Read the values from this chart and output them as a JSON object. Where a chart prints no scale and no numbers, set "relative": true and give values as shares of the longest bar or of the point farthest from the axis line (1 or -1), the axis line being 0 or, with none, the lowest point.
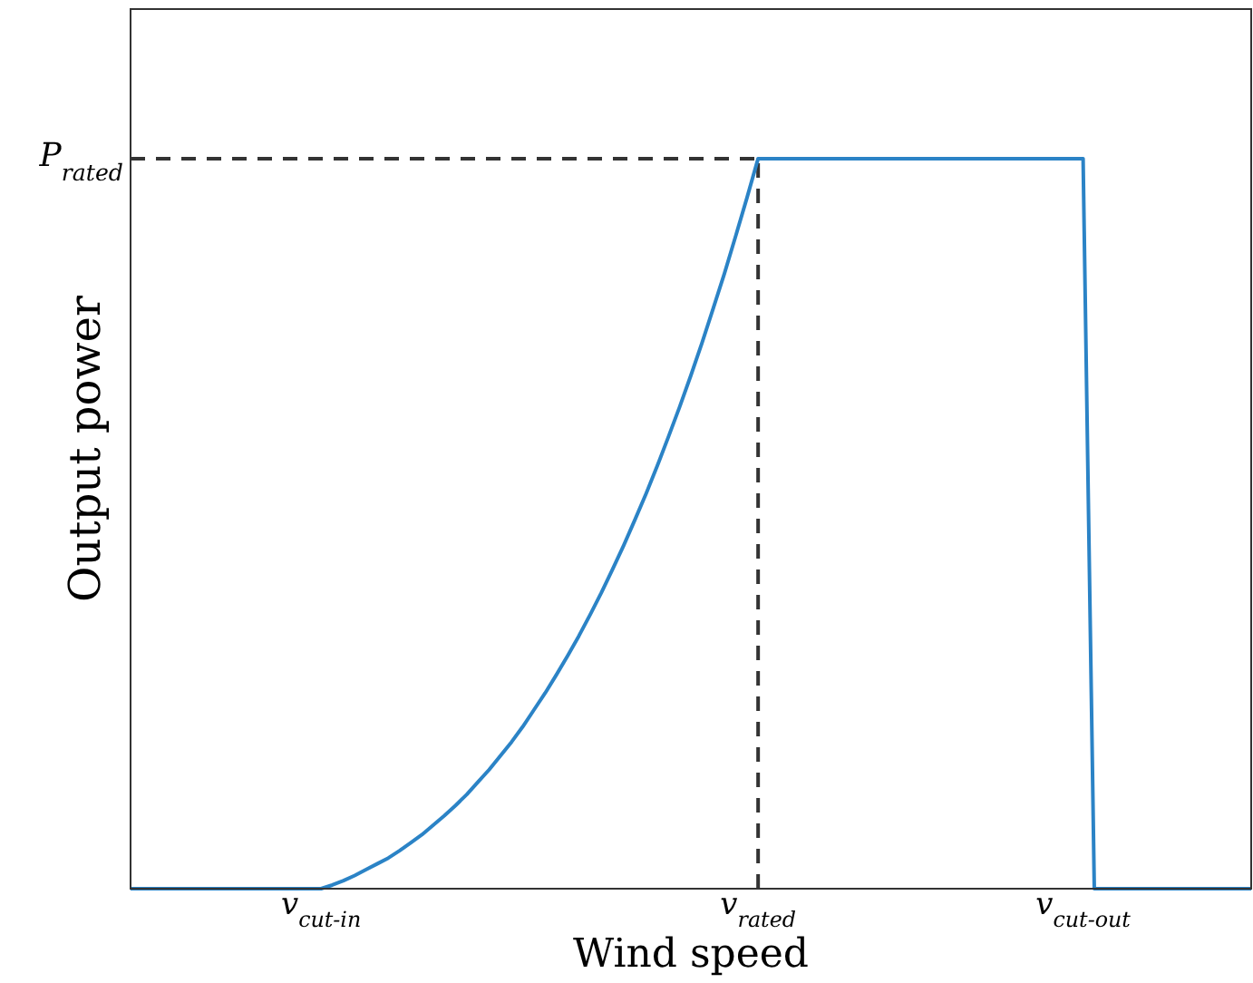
{
  "chart_data": {
    "type": "line",
    "xlabel": "Wind speed",
    "ylabel": "Output power",
    "relative": true,
    "categories": [
      null,
      null,
      null,
      null,
      null,
      null,
      null,
      null,
      null,
      null,
      null,
      null,
      null,
      null,
      null,
      null,
      null,
      "v$_{cut-in}$",
      null,
      null,
      null,
      null,
      null,
      null,
      null,
      null,
      null,
      null,
      null,
      null,
      null,
      null,
      null,
      null,
      null,
      null,
      null,
      null,
      null,
      null,
      null,
      null,
      null,
      null,
      null,
      null,
      null,
      null,
      null,
      null,
      null,
      null,
      null,
      null,
      null,
      null,
      "v$_{rated}$",
      null,
      null,
      null,
      null,
      null,
      null,
      null,
      null,
      null,
      null,
      null,
      null,
      null,
      null,
      null,
      null,
      null,
      null,
      null,
      null,
      null,
      null,
      null,
      null,
      null,
      null,
      null,
      null,
      "v$_{cut-out}$",
      null,
      null,
      null,
      null,
      null,
      null,
      null,
      null,
      null,
      null,
      null,
      null,
      null,
      null,
      null
    ],
    "annotations": [
      "P$_{rated}$"
    ],
    "ref_lines": [
      {
        "axis": "x",
        "value": "v$_{rated}$",
        "line_style": "dashed",
        "color": "#333333"
      }
    ],
    "grid": false,
    "marker": "none",
    "series": [
      {
        "color": "#333333",
        "line_style": "dashed",
        "values": [
          1,
          1,
          1,
          1,
          1,
          1,
          1,
          1,
          1,
          1,
          1,
          1,
          1,
          1,
          1,
          1,
          1,
          1,
          1,
          1,
          1,
          1,
          1,
          1,
          1,
          1,
          1,
          1,
          1,
          1,
          1,
          1,
          1,
          1,
          1,
          1,
          1,
          1,
          1,
          1,
          1,
          1,
          1,
          1,
          1,
          1,
          1,
          1,
          1,
          1,
          1,
          1,
          1,
          1,
          1,
          1,
          1,
          null,
          null,
          null,
          null,
          null,
          null,
          null,
          null,
          null,
          null,
          null,
          null,
          null,
          null,
          null,
          null,
          null,
          null,
          null,
          null,
          null,
          null,
          null,
          null,
          null,
          null,
          null,
          null,
          null,
          null,
          null,
          null,
          null,
          null,
          null,
          null,
          null,
          null,
          null,
          null,
          null,
          null,
          null,
          null
        ]
      },
      {
        "color": "#2b83c6",
        "line_style": "solid",
        "values": [
          0,
          0,
          0,
          0,
          0,
          0,
          0,
          0,
          0,
          0,
          0,
          0,
          0,
          0,
          0,
          0,
          0,
          0,
          0.005,
          0.011,
          0.018,
          0.026,
          0.034,
          0.042,
          0.052,
          0.063,
          0.074,
          0.087,
          0.1,
          0.114,
          0.129,
          0.146,
          0.163,
          0.182,
          0.201,
          0.222,
          0.245,
          0.268,
          0.293,
          0.319,
          0.346,
          0.375,
          0.405,
          0.437,
          0.47,
          0.505,
          0.541,
          0.579,
          0.619,
          0.66,
          0.703,
          0.748,
          0.795,
          0.843,
          0.894,
          0.946,
          1,
          1,
          1,
          1,
          1,
          1,
          1,
          1,
          1,
          1,
          1,
          1,
          1,
          1,
          1,
          1,
          1,
          1,
          1,
          1,
          1,
          1,
          1,
          1,
          1,
          1,
          1,
          1,
          1,
          1,
          0,
          0,
          0,
          0,
          0,
          0,
          0,
          0,
          0,
          0,
          0,
          0,
          0,
          0,
          0
        ]
      }
    ]
  }
}
